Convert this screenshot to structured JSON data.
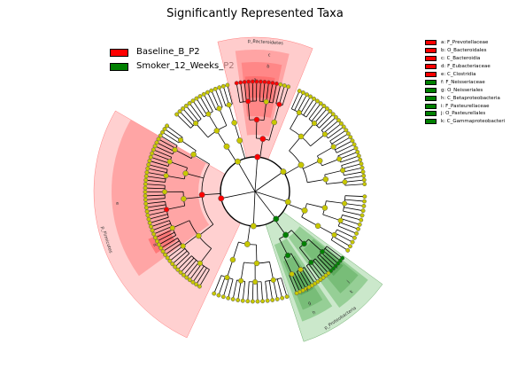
{
  "title": "Significantly Represented Taxa",
  "colors": {
    "red": "#ff0000",
    "green": "#008000",
    "neutral_node": "#c8c800",
    "red_band": "#ffb0b0",
    "green_band": "#a8d8a8"
  },
  "groups": [
    {
      "name": "Baseline_B_P2",
      "color": "#ff0000"
    },
    {
      "name": "Smoker_12_Weeks_P2",
      "color": "#008000"
    }
  ],
  "clades": [
    {
      "key": "a",
      "label": "a: F_Prevotellaceae",
      "group": "red"
    },
    {
      "key": "b",
      "label": "b: O_Bacteroidales",
      "group": "red"
    },
    {
      "key": "c",
      "label": "c: C_Bacteroidia",
      "group": "red"
    },
    {
      "key": "d",
      "label": "d: F_Eubacteriaceae",
      "group": "red"
    },
    {
      "key": "e",
      "label": "e: C_Clostridia",
      "group": "red"
    },
    {
      "key": "f",
      "label": "f: F_Neisseriaceae",
      "group": "green"
    },
    {
      "key": "g",
      "label": "g: O_Neisseriales",
      "group": "green"
    },
    {
      "key": "h",
      "label": "h: C_Betaproteobacteria",
      "group": "green"
    },
    {
      "key": "i",
      "label": "i: F_Pasteurellaceae",
      "group": "green"
    },
    {
      "key": "j",
      "label": "j: O_Pasteurellales",
      "group": "green"
    },
    {
      "key": "k",
      "label": "k: C_Gammaproteobacteri",
      "group": "green"
    }
  ],
  "phyla": [
    {
      "label": "p_Bacteroidetes",
      "group": "red"
    },
    {
      "label": "p_Firmicutes",
      "group": "red"
    },
    {
      "label": "p_Proteobacteria",
      "group": "green"
    }
  ]
}
